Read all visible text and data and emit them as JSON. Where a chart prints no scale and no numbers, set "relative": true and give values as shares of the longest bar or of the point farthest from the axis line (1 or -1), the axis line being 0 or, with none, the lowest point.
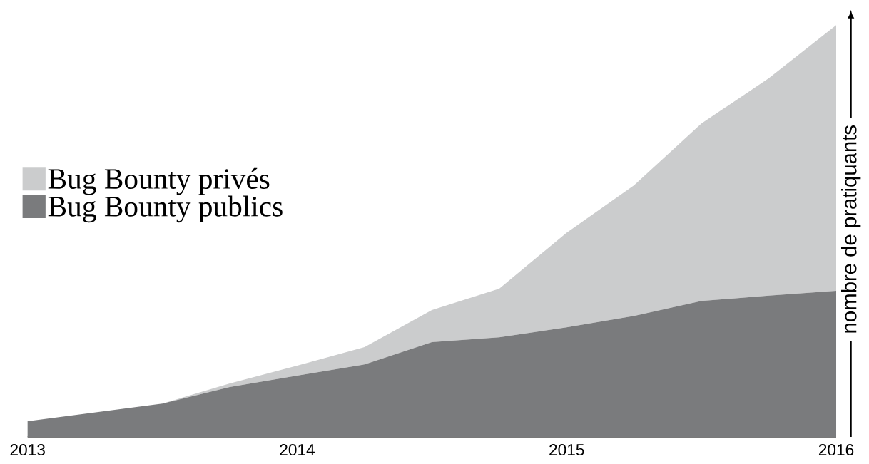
{
  "chart_data": {
    "type": "area",
    "stacked": true,
    "relative": true,
    "x": [
      2013,
      2013.5,
      2013.75,
      2014,
      2014.25,
      2014.5,
      2014.75,
      2015,
      2015.25,
      2015.5,
      2015.75,
      2016
    ],
    "xlim": [
      2013,
      2016
    ],
    "xticks": [
      2013,
      2014,
      2015,
      2016
    ],
    "ylabel": "nombre de pratiquants",
    "series": [
      {
        "name": "Bug Bounty publics",
        "color": "#7a7b7d",
        "values": [
          0.038,
          0.081,
          0.121,
          0.149,
          0.176,
          0.23,
          0.242,
          0.266,
          0.294,
          0.33,
          0.343,
          0.355
        ]
      },
      {
        "name": "Bug Bounty privés",
        "color": "#cbcccd",
        "values": [
          0,
          0,
          0.009,
          0.024,
          0.042,
          0.078,
          0.118,
          0.23,
          0.317,
          0.431,
          0.528,
          0.645
        ]
      }
    ],
    "legend": "left",
    "grid": false
  }
}
